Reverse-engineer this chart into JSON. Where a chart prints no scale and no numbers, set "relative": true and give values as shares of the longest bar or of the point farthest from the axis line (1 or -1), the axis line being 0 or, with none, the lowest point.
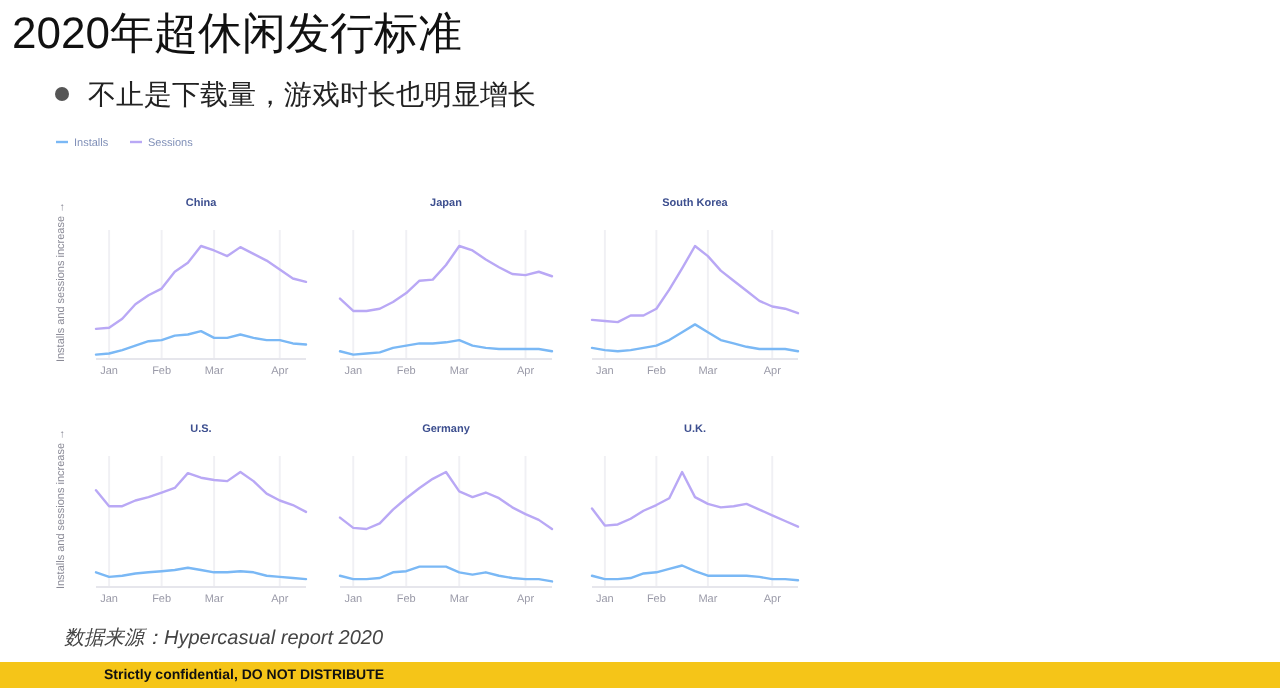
{
  "chart_data": [
    {
      "type": "line",
      "title": "China",
      "ylabel": "Installs and sessions increase →",
      "relative": true,
      "legend": "top left",
      "grid": "x",
      "categories": [
        null,
        "Jan",
        null,
        null,
        null,
        "Feb",
        null,
        null,
        null,
        "Mar",
        null,
        null,
        null,
        null,
        "Apr",
        null,
        null
      ],
      "annotations": [
        "2020年超休闲发行标准",
        "不止是下载量，游戏时长也明显增长",
        "数据来源：Hypercasual report 2020",
        "Strictly confidential, DO NOT DISTRIBUTE"
      ],
      "series": [
        {
          "name": "Installs",
          "color": "#7ab8f5",
          "values": [
            0.03,
            0.04,
            0.07,
            0.11,
            0.15,
            0.16,
            0.2,
            0.21,
            0.24,
            0.18,
            0.18,
            0.21,
            0.18,
            0.16,
            0.16,
            0.13,
            0.12
          ]
        },
        {
          "name": "Sessions",
          "color": "#b9a8f5",
          "values": [
            0.26,
            0.27,
            0.35,
            0.48,
            0.56,
            0.62,
            0.77,
            0.85,
            1.0,
            0.96,
            0.91,
            0.99,
            0.93,
            0.87,
            0.79,
            0.71,
            0.68
          ]
        }
      ]
    },
    {
      "type": "line",
      "title": "Japan",
      "relative": true,
      "grid": "x",
      "categories": [
        null,
        "Jan",
        null,
        null,
        null,
        "Feb",
        null,
        null,
        null,
        "Mar",
        null,
        null,
        null,
        null,
        "Apr",
        null,
        null
      ],
      "series": [
        {
          "color": "#7ab8f5",
          "values": [
            0.06,
            0.03,
            0.04,
            0.05,
            0.09,
            0.11,
            0.13,
            0.13,
            0.14,
            0.16,
            0.11,
            0.09,
            0.08,
            0.08,
            0.08,
            0.08,
            0.06
          ]
        },
        {
          "color": "#b9a8f5",
          "values": [
            0.53,
            0.42,
            0.42,
            0.44,
            0.5,
            0.58,
            0.69,
            0.7,
            0.83,
            1.0,
            0.96,
            0.88,
            0.81,
            0.75,
            0.74,
            0.77,
            0.73
          ]
        }
      ]
    },
    {
      "type": "line",
      "title": "South Korea",
      "relative": true,
      "grid": "x",
      "categories": [
        null,
        "Jan",
        null,
        null,
        null,
        "Feb",
        null,
        null,
        null,
        "Mar",
        null,
        null,
        null,
        null,
        "Apr",
        null,
        null
      ],
      "series": [
        {
          "color": "#7ab8f5",
          "values": [
            0.09,
            0.07,
            0.06,
            0.07,
            0.09,
            0.11,
            0.16,
            0.23,
            0.3,
            0.23,
            0.16,
            0.13,
            0.1,
            0.08,
            0.08,
            0.08,
            0.06
          ]
        },
        {
          "color": "#b9a8f5",
          "values": [
            0.34,
            0.33,
            0.32,
            0.38,
            0.38,
            0.44,
            0.61,
            0.8,
            1.0,
            0.91,
            0.78,
            0.69,
            0.6,
            0.51,
            0.46,
            0.44,
            0.4
          ]
        }
      ]
    },
    {
      "type": "line",
      "title": "U.S.",
      "ylabel": "Installs and sessions increase →",
      "relative": true,
      "grid": "x",
      "categories": [
        null,
        "Jan",
        null,
        null,
        null,
        "Feb",
        null,
        null,
        null,
        "Mar",
        null,
        null,
        null,
        null,
        "Apr",
        null,
        null
      ],
      "series": [
        {
          "color": "#7ab8f5",
          "values": [
            0.12,
            0.08,
            0.09,
            0.11,
            0.12,
            0.13,
            0.14,
            0.16,
            0.14,
            0.12,
            0.12,
            0.13,
            0.12,
            0.09,
            0.08,
            0.07,
            0.06
          ]
        },
        {
          "color": "#b9a8f5",
          "values": [
            0.84,
            0.7,
            0.7,
            0.75,
            0.78,
            0.82,
            0.86,
            0.99,
            0.95,
            0.93,
            0.92,
            1.0,
            0.92,
            0.81,
            0.75,
            0.71,
            0.65
          ]
        }
      ]
    },
    {
      "type": "line",
      "title": "Germany",
      "relative": true,
      "grid": "x",
      "categories": [
        null,
        "Jan",
        null,
        null,
        null,
        "Feb",
        null,
        null,
        null,
        "Mar",
        null,
        null,
        null,
        null,
        "Apr",
        null,
        null
      ],
      "series": [
        {
          "color": "#7ab8f5",
          "values": [
            0.09,
            0.06,
            0.06,
            0.07,
            0.12,
            0.13,
            0.17,
            0.17,
            0.17,
            0.12,
            0.1,
            0.12,
            0.09,
            0.07,
            0.06,
            0.06,
            0.04
          ]
        },
        {
          "color": "#b9a8f5",
          "values": [
            0.6,
            0.51,
            0.5,
            0.55,
            0.67,
            0.77,
            0.86,
            0.94,
            1.0,
            0.83,
            0.78,
            0.82,
            0.77,
            0.69,
            0.63,
            0.58,
            0.5
          ]
        }
      ]
    },
    {
      "type": "line",
      "title": "U.K.",
      "relative": true,
      "grid": "x",
      "categories": [
        null,
        "Jan",
        null,
        null,
        null,
        "Feb",
        null,
        null,
        null,
        "Mar",
        null,
        null,
        null,
        null,
        "Apr",
        null,
        null
      ],
      "series": [
        {
          "color": "#7ab8f5",
          "values": [
            0.09,
            0.06,
            0.06,
            0.07,
            0.11,
            0.12,
            0.15,
            0.18,
            0.13,
            0.09,
            0.09,
            0.09,
            0.09,
            0.08,
            0.06,
            0.06,
            0.05
          ]
        },
        {
          "color": "#b9a8f5",
          "values": [
            0.68,
            0.53,
            0.54,
            0.59,
            0.66,
            0.71,
            0.77,
            1.0,
            0.78,
            0.72,
            0.69,
            0.7,
            0.72,
            0.67,
            0.62,
            0.57,
            0.52
          ]
        }
      ]
    }
  ]
}
